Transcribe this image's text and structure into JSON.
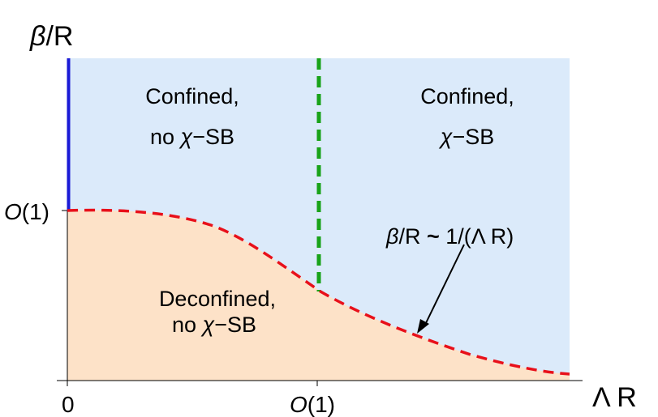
{
  "axes": {
    "y_label_italic": "β",
    "y_label_rest": "/R",
    "x_label": "Λ R",
    "x_ticks": [
      {
        "italic": "",
        "rest": "0"
      },
      {
        "italic": "O",
        "rest": "(1)"
      }
    ],
    "y_tick": {
      "italic": "O",
      "rest": "(1)"
    }
  },
  "regions": {
    "top_left": {
      "line1": "Confined,",
      "line2_prefix": "no ",
      "line2_italic": "χ",
      "line2_suffix": "−SB"
    },
    "top_right": {
      "line1": "Confined,",
      "line2_italic": "χ",
      "line2_suffix": "−SB"
    },
    "bottom": {
      "line1": "Deconfined,",
      "line2_prefix": "no ",
      "line2_italic": "χ",
      "line2_suffix": "−SB"
    }
  },
  "annotation": {
    "italic": "β",
    "rest": "/R ",
    "tilde": "~",
    "rhs": " 1/(Λ R)"
  },
  "colors": {
    "confined": "#dbeafa",
    "deconfined": "#fde2c8",
    "boundary_curve": "#e8101a",
    "vertical_transition": "#19a319",
    "left_edge_line": "#1a1ad6",
    "axis": "#000000"
  }
}
